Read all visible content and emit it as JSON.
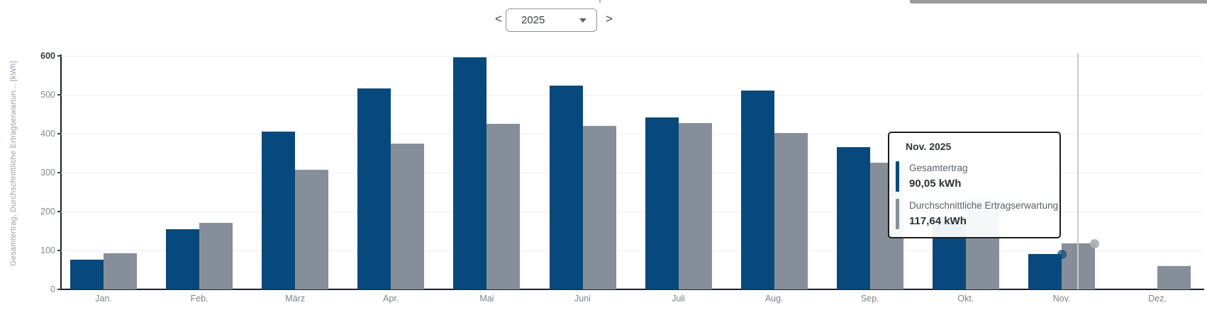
{
  "controls": {
    "prev_label": "<",
    "next_label": ">",
    "year": "2025"
  },
  "chart_data": {
    "type": "bar",
    "title": "",
    "categories": [
      "Jan.",
      "Feb.",
      "März",
      "Apr.",
      "Mai",
      "Juni",
      "Juli",
      "Aug.",
      "Sep.",
      "Okt.",
      "Nov.",
      "Dez."
    ],
    "series": [
      {
        "name": "Gesamtertrag",
        "color": "#07497c",
        "values": [
          76,
          155,
          405,
          517,
          597,
          524,
          442,
          511,
          366,
          185,
          90.05,
          0
        ]
      },
      {
        "name": "Durchschnittliche Ertragserwartung",
        "color": "#868e99",
        "values": [
          93,
          171,
          307,
          375,
          426,
          420,
          427,
          402,
          325,
          231,
          117.64,
          60
        ]
      }
    ],
    "xlabel": "",
    "ylabel": "Gesamtertrag, Durchschnittliche Ertragserwartun... [kWh]",
    "ylim": [
      0,
      600
    ],
    "yticks": [
      0,
      100,
      200,
      300,
      400,
      500,
      600
    ],
    "grid": true,
    "legend": "none",
    "hovered_category": "Nov."
  },
  "tooltip": {
    "title": "Nov. 2025",
    "rows": [
      {
        "label": "Gesamtertrag",
        "value": "90,05 kWh"
      },
      {
        "label": "Durchschnittliche Ertragserwartung",
        "value": "117,64 kWh"
      }
    ]
  }
}
